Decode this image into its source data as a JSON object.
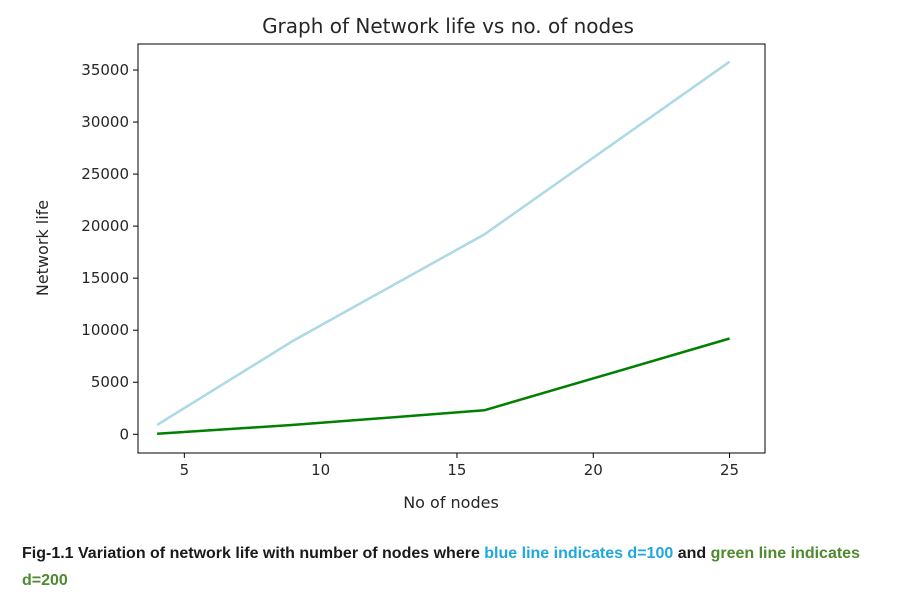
{
  "chart_data": {
    "type": "line",
    "title": "Graph of Network life vs no. of nodes",
    "xlabel": "No of nodes",
    "ylabel": "Network life",
    "x": [
      4,
      9,
      16,
      25
    ],
    "xlim": [
      3.3,
      26.3
    ],
    "ylim": [
      -1800,
      37500
    ],
    "xticks": [
      5,
      10,
      15,
      20,
      25
    ],
    "yticks": [
      0,
      5000,
      10000,
      15000,
      20000,
      25000,
      30000,
      35000
    ],
    "grid": false,
    "series": [
      {
        "name": "d=100",
        "color": "#add8e6",
        "values": [
          900,
          9000,
          19200,
          35800
        ]
      },
      {
        "name": "d=200",
        "color": "#008000",
        "values": [
          50,
          900,
          2300,
          9200
        ]
      }
    ]
  },
  "caption": {
    "prefix": "Fig-1.1 Variation of network life with number of nodes where ",
    "blue_text": "blue line indicates d=100",
    "middle": " and ",
    "green_text": "green line indicates d=200",
    "blue_color": "#1fa8dc",
    "green_color": "#4e8a2e"
  }
}
